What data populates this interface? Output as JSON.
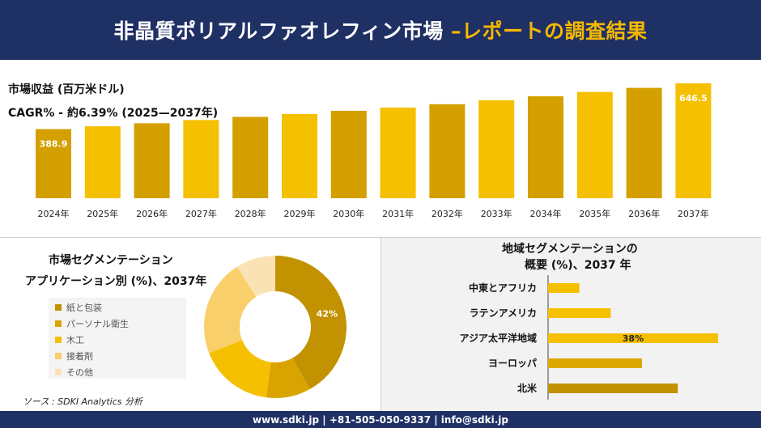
{
  "header": {
    "title_main": "非晶質ポリアルファオレフィン市場",
    "title_accent": "–レポートの調査結果"
  },
  "top_panel": {
    "metric_label": "市場収益 (百万米ドル)",
    "cagr_label": "CAGR% - 約6.39% (2025—2037年)"
  },
  "segment_panel": {
    "title_line1": "市場セグメンテーション",
    "title_line2": "アプリケーション別 (%)、2037年"
  },
  "region_panel": {
    "title_line1": "地域セグメンテーションの",
    "title_line2": "概要 (%)、2037 年"
  },
  "source": "ソース : SDKI Analytics 分析",
  "footer": "www.sdki.jp | +81-505-050-9337 | info@sdki.jp",
  "colors": {
    "navy": "#1f3064",
    "gold": "#f5b800",
    "bar_dark": "#d4a000",
    "bar_light": "#f5c000"
  },
  "chart_data": [
    {
      "type": "bar",
      "title": "市場収益 (百万米ドル)",
      "categories": [
        "2024年",
        "2025年",
        "2026年",
        "2027年",
        "2028年",
        "2029年",
        "2030年",
        "2031年",
        "2032年",
        "2033年",
        "2034年",
        "2035年",
        "2036年",
        "2037年"
      ],
      "values": [
        388.9,
        405,
        422,
        440,
        458,
        474,
        492,
        510,
        529,
        551,
        574,
        598,
        621,
        646.5
      ],
      "data_labels": {
        "0": "388.9",
        "13": "646.5"
      },
      "ylim": [
        0,
        690
      ],
      "grid": false
    },
    {
      "type": "pie",
      "categories": [
        "紙と包装",
        "パーソナル衛生",
        "木工",
        "接着剤",
        "その他"
      ],
      "values": [
        42,
        10,
        17,
        22,
        9
      ],
      "data_labels": {
        "0": "42%"
      },
      "colors": [
        "#c29200",
        "#daa400",
        "#f5c000",
        "#f9cf6b",
        "#fbe2b4"
      ],
      "legend": "left"
    },
    {
      "type": "bar",
      "orientation": "horizontal",
      "categories": [
        "中東とアフリカ",
        "ラテンアメリカ",
        "アジア太平洋地域",
        "ヨーロッパ",
        "北米"
      ],
      "values": [
        7,
        14,
        38,
        21,
        29
      ],
      "data_labels": {
        "2": "38%"
      },
      "colors": [
        "#f5c000",
        "#f5c000",
        "#f5c000",
        "#dca800",
        "#c29200"
      ],
      "xlim": [
        0,
        42
      ]
    }
  ]
}
